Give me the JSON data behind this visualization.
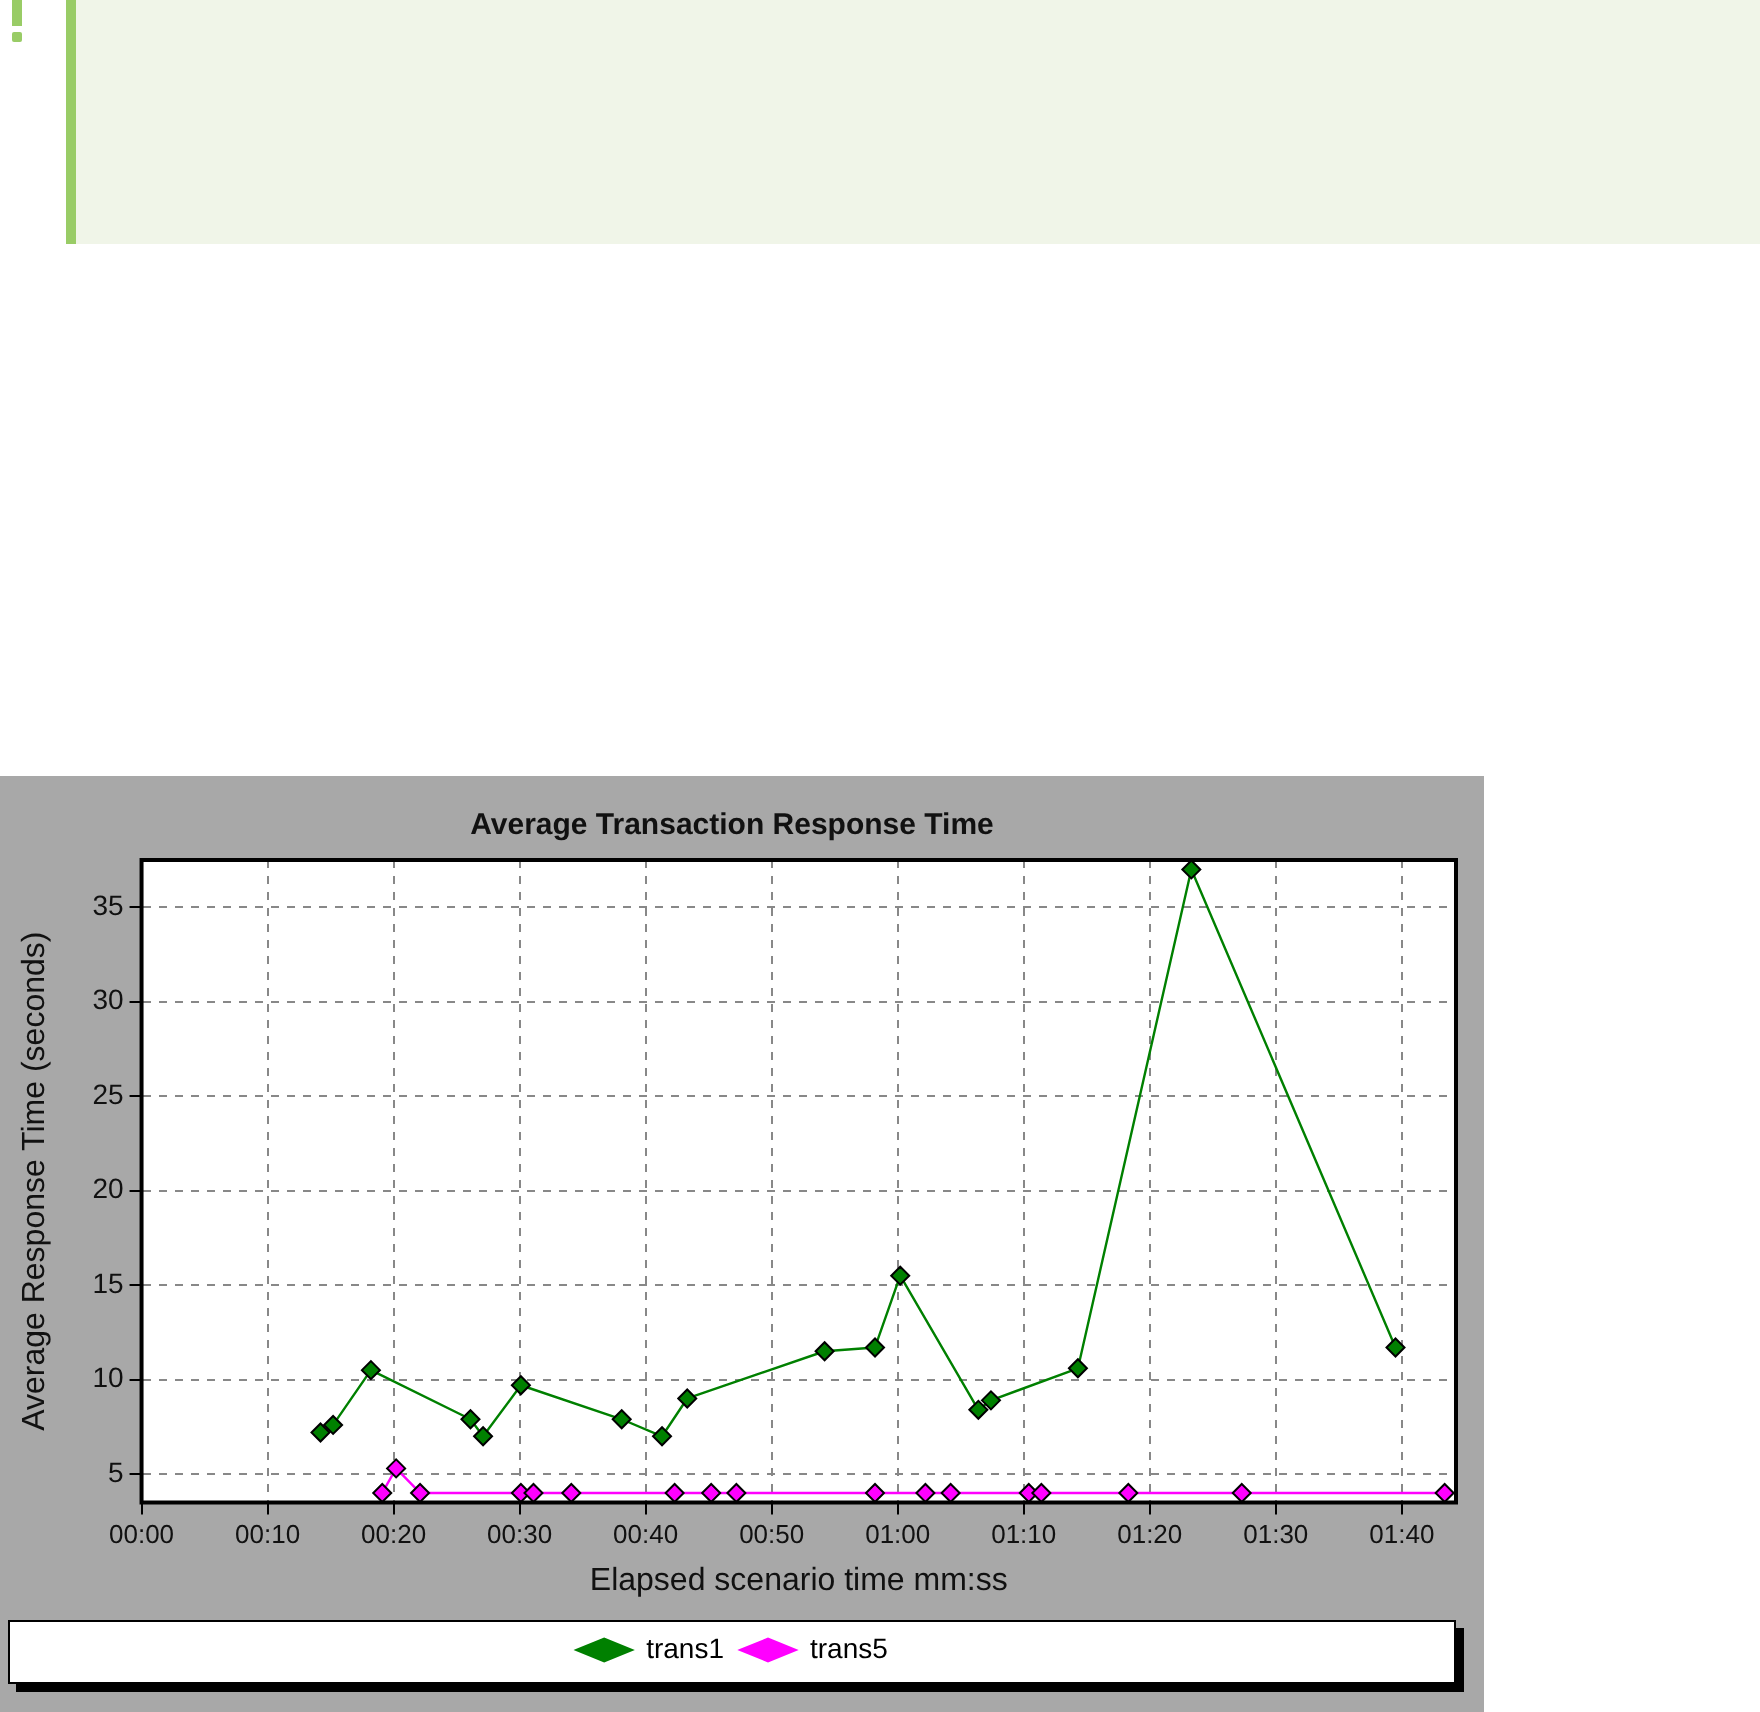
{
  "chart_data": {
    "type": "line",
    "title": "Average Transaction Response Time",
    "xlabel": "Elapsed scenario time mm:ss",
    "ylabel": "Average Response Time (seconds)",
    "xlim": [
      0,
      104.3
    ],
    "xticks": [
      {
        "value": 0,
        "label": "00:00"
      },
      {
        "value": 10,
        "label": "00:10"
      },
      {
        "value": 20,
        "label": "00:20"
      },
      {
        "value": 30,
        "label": "00:30"
      },
      {
        "value": 40,
        "label": "00:40"
      },
      {
        "value": 50,
        "label": "00:50"
      },
      {
        "value": 60,
        "label": "01:00"
      },
      {
        "value": 70,
        "label": "01:10"
      },
      {
        "value": 80,
        "label": "01:20"
      },
      {
        "value": 90,
        "label": "01:30"
      },
      {
        "value": 100,
        "label": "01:40"
      }
    ],
    "ylim": [
      3.5,
      37.5
    ],
    "yticks": [
      5,
      10,
      15,
      20,
      25,
      30,
      35
    ],
    "grid": true,
    "legend": "bottom",
    "marker": "diamond",
    "line_style": "solid",
    "series": [
      {
        "name": "trans1",
        "color": "#008000",
        "x": [
          14.2,
          15.2,
          18.2,
          26.1,
          27.1,
          30.1,
          38.1,
          41.3,
          43.3,
          54.2,
          58.2,
          60.2,
          66.4,
          67.4,
          74.3,
          83.3,
          99.5
        ],
        "values": [
          7.2,
          7.6,
          10.5,
          7.9,
          7.0,
          9.7,
          7.9,
          7.0,
          9.0,
          11.5,
          11.7,
          15.5,
          8.4,
          8.9,
          10.6,
          37.0,
          11.7
        ]
      },
      {
        "name": "trans5",
        "color": "#ff00ff",
        "x": [
          19.1,
          20.2,
          22.1,
          30.1,
          31.1,
          34.1,
          42.3,
          45.2,
          47.2,
          58.2,
          62.2,
          64.2,
          70.4,
          71.4,
          78.3,
          87.3,
          103.4
        ],
        "values": [
          4.0,
          5.3,
          4.0,
          4.0,
          4.0,
          4.0,
          4.0,
          4.0,
          4.0,
          4.0,
          4.0,
          4.0,
          4.0,
          4.0,
          4.0,
          4.0,
          4.0
        ]
      }
    ]
  }
}
